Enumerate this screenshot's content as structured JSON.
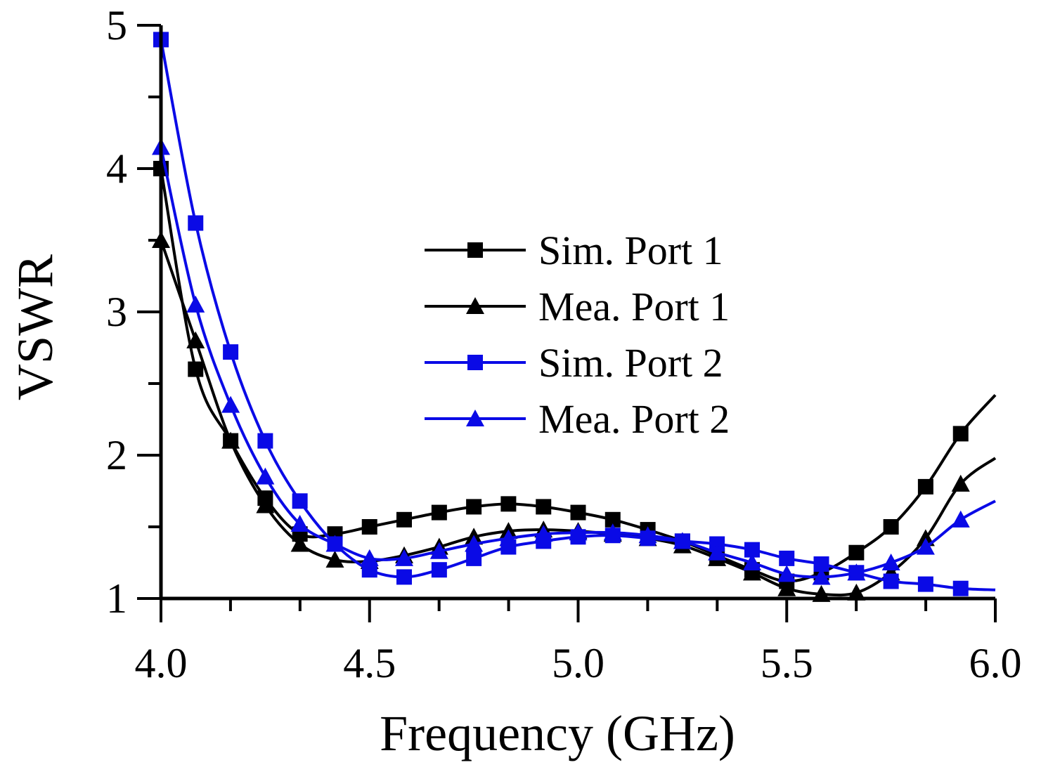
{
  "chart_data": {
    "type": "line",
    "xlabel": "Frequency (GHz)",
    "ylabel": "VSWR",
    "xlim": [
      4.0,
      6.0
    ],
    "ylim": [
      1,
      5
    ],
    "xticks": [
      "4.0",
      "4.5",
      "5.0",
      "5.5",
      "6.0"
    ],
    "yticks": [
      "1",
      "2",
      "3",
      "4",
      "5"
    ],
    "grid": false,
    "legend_position": "center",
    "series": [
      {
        "name": "Sim. Port 1",
        "color": "#000000",
        "marker": "square",
        "x": [
          4.0,
          4.083,
          4.167,
          4.25,
          4.333,
          4.417,
          4.5,
          4.583,
          4.667,
          4.75,
          4.833,
          4.917,
          5.0,
          5.083,
          5.167,
          5.25,
          5.333,
          5.417,
          5.5,
          5.583,
          5.667,
          5.75,
          5.833,
          5.917,
          6.0
        ],
        "y": [
          4.0,
          2.6,
          2.1,
          1.7,
          1.45,
          1.45,
          1.5,
          1.55,
          1.6,
          1.64,
          1.66,
          1.64,
          1.6,
          1.55,
          1.48,
          1.4,
          1.3,
          1.2,
          1.12,
          1.18,
          1.32,
          1.5,
          1.78,
          2.15,
          2.42
        ],
        "marker_x": [
          4.0,
          4.083,
          4.167,
          4.25,
          4.333,
          4.417,
          4.5,
          4.583,
          4.667,
          4.75,
          4.833,
          4.917,
          5.0,
          5.083,
          5.167,
          5.25,
          5.333,
          5.417,
          5.5,
          5.583,
          5.667,
          5.75,
          5.833,
          5.917
        ],
        "marker_y": [
          4.0,
          2.6,
          2.1,
          1.7,
          1.45,
          1.45,
          1.5,
          1.55,
          1.6,
          1.64,
          1.66,
          1.64,
          1.6,
          1.55,
          1.48,
          1.4,
          1.3,
          1.2,
          1.12,
          1.18,
          1.32,
          1.5,
          1.78,
          2.15
        ]
      },
      {
        "name": "Mea. Port 1",
        "color": "#000000",
        "marker": "triangle",
        "x": [
          4.0,
          4.083,
          4.167,
          4.25,
          4.333,
          4.417,
          4.5,
          4.583,
          4.667,
          4.75,
          4.833,
          4.917,
          5.0,
          5.083,
          5.167,
          5.25,
          5.333,
          5.417,
          5.5,
          5.583,
          5.667,
          5.75,
          5.833,
          5.917,
          6.0
        ],
        "y": [
          3.5,
          2.8,
          2.1,
          1.65,
          1.38,
          1.27,
          1.26,
          1.3,
          1.36,
          1.43,
          1.47,
          1.48,
          1.47,
          1.45,
          1.42,
          1.37,
          1.28,
          1.18,
          1.07,
          1.03,
          1.04,
          1.18,
          1.42,
          1.8,
          1.98
        ],
        "marker_x": [
          4.0,
          4.083,
          4.167,
          4.25,
          4.333,
          4.417,
          4.5,
          4.583,
          4.667,
          4.75,
          4.833,
          4.917,
          5.0,
          5.083,
          5.167,
          5.25,
          5.333,
          5.417,
          5.5,
          5.583,
          5.667,
          5.75,
          5.833,
          5.917
        ],
        "marker_y": [
          3.5,
          2.8,
          2.1,
          1.65,
          1.38,
          1.27,
          1.26,
          1.3,
          1.36,
          1.43,
          1.47,
          1.48,
          1.47,
          1.45,
          1.42,
          1.37,
          1.28,
          1.18,
          1.07,
          1.03,
          1.04,
          1.18,
          1.42,
          1.8
        ]
      },
      {
        "name": "Sim. Port 2",
        "color": "#0a0ae6",
        "marker": "square",
        "x": [
          4.0,
          4.083,
          4.167,
          4.25,
          4.333,
          4.417,
          4.5,
          4.583,
          4.667,
          4.75,
          4.833,
          4.917,
          5.0,
          5.083,
          5.167,
          5.25,
          5.333,
          5.417,
          5.5,
          5.583,
          5.667,
          5.75,
          5.833,
          5.917,
          6.0
        ],
        "y": [
          4.9,
          3.62,
          2.72,
          2.1,
          1.68,
          1.38,
          1.2,
          1.15,
          1.2,
          1.28,
          1.36,
          1.4,
          1.43,
          1.44,
          1.42,
          1.4,
          1.38,
          1.34,
          1.28,
          1.24,
          1.18,
          1.12,
          1.1,
          1.07,
          1.06
        ],
        "marker_x": [
          4.0,
          4.083,
          4.167,
          4.25,
          4.333,
          4.417,
          4.5,
          4.583,
          4.667,
          4.75,
          4.833,
          4.917,
          5.0,
          5.083,
          5.167,
          5.25,
          5.333,
          5.417,
          5.5,
          5.583,
          5.667,
          5.75,
          5.833,
          5.917
        ],
        "marker_y": [
          4.9,
          3.62,
          2.72,
          2.1,
          1.68,
          1.38,
          1.2,
          1.15,
          1.2,
          1.28,
          1.36,
          1.4,
          1.43,
          1.44,
          1.42,
          1.4,
          1.38,
          1.34,
          1.28,
          1.24,
          1.18,
          1.12,
          1.1,
          1.07
        ]
      },
      {
        "name": "Mea. Port 2",
        "color": "#0a0ae6",
        "marker": "triangle",
        "x": [
          4.0,
          4.083,
          4.167,
          4.25,
          4.333,
          4.417,
          4.5,
          4.583,
          4.667,
          4.75,
          4.833,
          4.917,
          5.0,
          5.083,
          5.167,
          5.25,
          5.333,
          5.417,
          5.5,
          5.583,
          5.667,
          5.75,
          5.833,
          5.917,
          6.0
        ],
        "y": [
          4.15,
          3.05,
          2.35,
          1.85,
          1.52,
          1.38,
          1.28,
          1.28,
          1.33,
          1.38,
          1.42,
          1.45,
          1.46,
          1.46,
          1.44,
          1.4,
          1.32,
          1.25,
          1.17,
          1.15,
          1.18,
          1.25,
          1.36,
          1.55,
          1.68
        ],
        "marker_x": [
          4.0,
          4.083,
          4.167,
          4.25,
          4.333,
          4.417,
          4.5,
          4.583,
          4.667,
          4.75,
          4.833,
          4.917,
          5.0,
          5.083,
          5.167,
          5.25,
          5.333,
          5.417,
          5.5,
          5.583,
          5.667,
          5.75,
          5.833,
          5.917
        ],
        "marker_y": [
          4.15,
          3.05,
          2.35,
          1.85,
          1.52,
          1.38,
          1.28,
          1.28,
          1.33,
          1.38,
          1.42,
          1.45,
          1.46,
          1.46,
          1.44,
          1.4,
          1.32,
          1.25,
          1.17,
          1.15,
          1.18,
          1.25,
          1.36,
          1.55
        ]
      }
    ]
  }
}
